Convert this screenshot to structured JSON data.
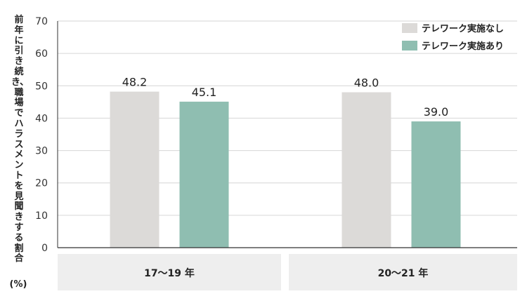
{
  "chart_data": {
    "type": "bar",
    "categories": [
      "17〜19 年",
      "20〜21 年"
    ],
    "series": [
      {
        "name": "テレワーク実施なし",
        "values": [
          48.2,
          48.0
        ],
        "color": "#dcdad8"
      },
      {
        "name": "テレワーク実施あり",
        "values": [
          45.1,
          39.0
        ],
        "color": "#8fbeb1"
      }
    ],
    "data_labels": [
      [
        "48.2",
        "48.0"
      ],
      [
        "45.1",
        "39.0"
      ]
    ],
    "ylabel": "前年に引き続き、職場でハラスメントを見聞きする割合",
    "ylabel_unit": "(%)",
    "ylim": [
      0,
      70
    ],
    "yticks": [
      0,
      10,
      20,
      30,
      40,
      50,
      60,
      70
    ],
    "grid": true,
    "legend_position": "top-right",
    "axis_color": "#333333",
    "grid_color": "#d6d6d6",
    "category_band_color": "#eeeeee"
  }
}
